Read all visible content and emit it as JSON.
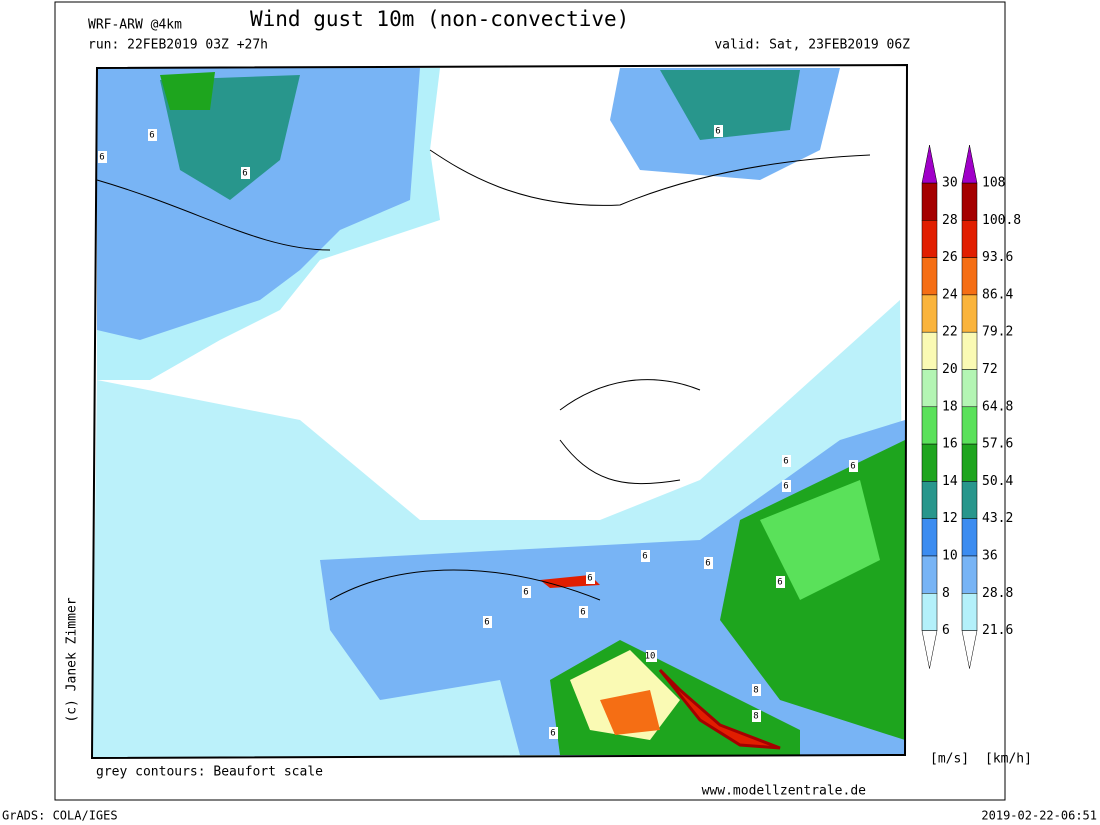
{
  "header": {
    "model": "WRF-ARW @4km",
    "title": "Wind gust 10m (non-convective)",
    "run": "run: 22FEB2019 03Z +27h",
    "valid": "valid: Sat, 23FEB2019 06Z"
  },
  "map": {
    "credit": "(c) Janek Zimmer",
    "note": "grey contours: Beaufort scale",
    "website": "www.modellzentrale.de",
    "contour_labels": [
      "6",
      "6",
      "6",
      "6",
      "6",
      "6",
      "6",
      "6",
      "6",
      "6",
      "6",
      "6",
      "6",
      "6",
      "8",
      "10",
      "8",
      "8",
      "6"
    ]
  },
  "legend": {
    "ms": [
      30,
      28,
      26,
      24,
      22,
      20,
      18,
      16,
      14,
      12,
      10,
      8,
      6
    ],
    "kmh": [
      108,
      100.8,
      93.6,
      86.4,
      79.2,
      72,
      64.8,
      57.6,
      50.4,
      43.2,
      36,
      28.8,
      21.6
    ],
    "colors": [
      "#a50000",
      "#e11e00",
      "#f56e14",
      "#fab43c",
      "#fafab4",
      "#b4f5b4",
      "#5ae15a",
      "#1ea51e",
      "#28968c",
      "#3c8cf0",
      "#78b4f5",
      "#b4f0fa"
    ],
    "top_color": "#a000c8",
    "bottom_color": "#ffffff",
    "units_ms": "[m/s]",
    "units_kmh": "[km/h]"
  },
  "footer": {
    "software": "GrADS: COLA/IGES",
    "timestamp": "2019-02-22-06:51"
  }
}
